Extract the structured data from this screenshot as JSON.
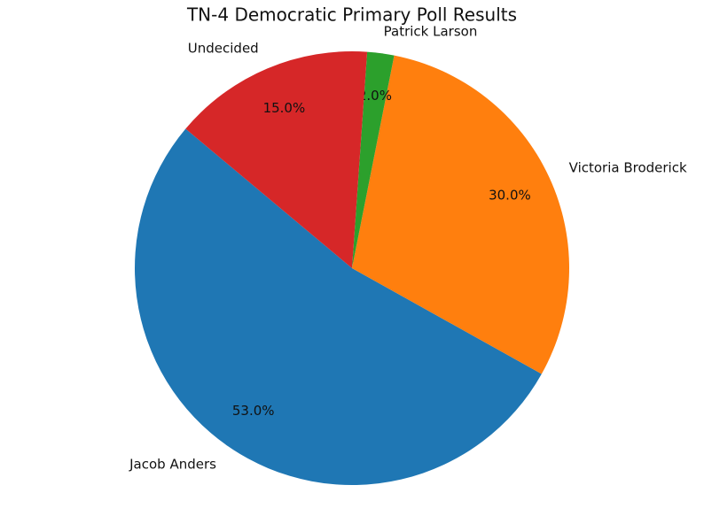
{
  "chart_data": {
    "type": "pie",
    "title": "TN-4 Democratic Primary Poll Results",
    "categories": [
      "Jacob Anders",
      "Victoria Broderick",
      "Patrick Larson",
      "Undecided"
    ],
    "values": [
      53,
      30,
      2,
      15
    ],
    "value_labels": [
      "53.0%",
      "30.0%",
      "2.0%",
      "15.0%"
    ],
    "colors": [
      "#1f77b4",
      "#ff7f0e",
      "#2ca02c",
      "#d62728"
    ]
  }
}
